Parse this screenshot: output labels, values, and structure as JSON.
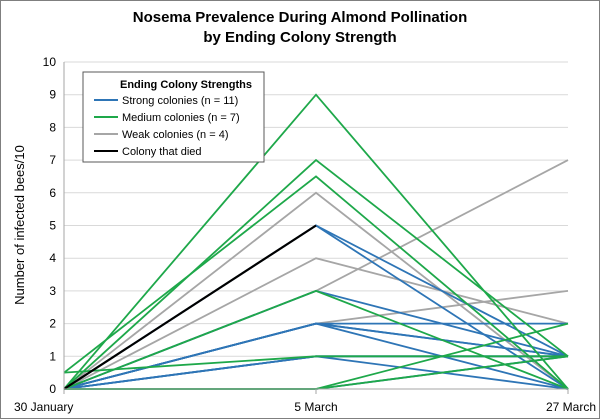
{
  "chart_data": {
    "type": "line",
    "title": [
      "Nosema Prevalence During Almond Pollination",
      "by Ending Colony Strength"
    ],
    "xlabel": "",
    "ylabel": "Number of infected bees/10",
    "x": [
      "30 January",
      "5 March",
      "27 March"
    ],
    "ylim": [
      0,
      10
    ],
    "yticks": [
      0,
      1,
      2,
      3,
      4,
      5,
      6,
      7,
      8,
      9,
      10
    ],
    "grid": "horizontal",
    "legend": {
      "title": "Ending Colony Strengths",
      "placement": "top-left",
      "entries": [
        {
          "label": "Strong colonies (n = 11)",
          "color": "#2e75b6"
        },
        {
          "label": "Medium colonies (n = 7)",
          "color": "#1ea84a"
        },
        {
          "label": "Weak colonies (n = 4)",
          "color": "#a6a6a6"
        },
        {
          "label": "Colony that died",
          "color": "#000000"
        }
      ]
    },
    "series_groups": [
      {
        "group": "Strong colonies",
        "color": "#2e75b6",
        "series": [
          [
            0,
            5,
            0
          ],
          [
            0,
            5,
            1
          ],
          [
            0,
            2,
            0
          ],
          [
            0,
            2,
            1
          ],
          [
            0,
            2,
            2
          ],
          [
            0,
            1,
            1
          ],
          [
            0,
            1,
            0
          ],
          [
            0,
            0,
            1
          ],
          [
            0,
            3,
            1
          ],
          [
            0,
            2,
            1
          ],
          [
            0,
            1,
            1
          ]
        ]
      },
      {
        "group": "Medium colonies",
        "color": "#1ea84a",
        "series": [
          [
            0,
            9,
            0
          ],
          [
            0,
            7,
            1
          ],
          [
            0.5,
            6.5,
            0
          ],
          [
            0,
            3,
            0
          ],
          [
            0.5,
            1,
            1
          ],
          [
            0,
            0,
            2
          ],
          [
            0,
            0,
            1
          ]
        ]
      },
      {
        "group": "Weak colonies",
        "color": "#a6a6a6",
        "series": [
          [
            0,
            6,
            0
          ],
          [
            0,
            4,
            2
          ],
          [
            0,
            3,
            7
          ],
          [
            0,
            2,
            3
          ]
        ]
      },
      {
        "group": "Colony that died",
        "color": "#000000",
        "series": [
          [
            0,
            5,
            null
          ]
        ]
      }
    ]
  }
}
